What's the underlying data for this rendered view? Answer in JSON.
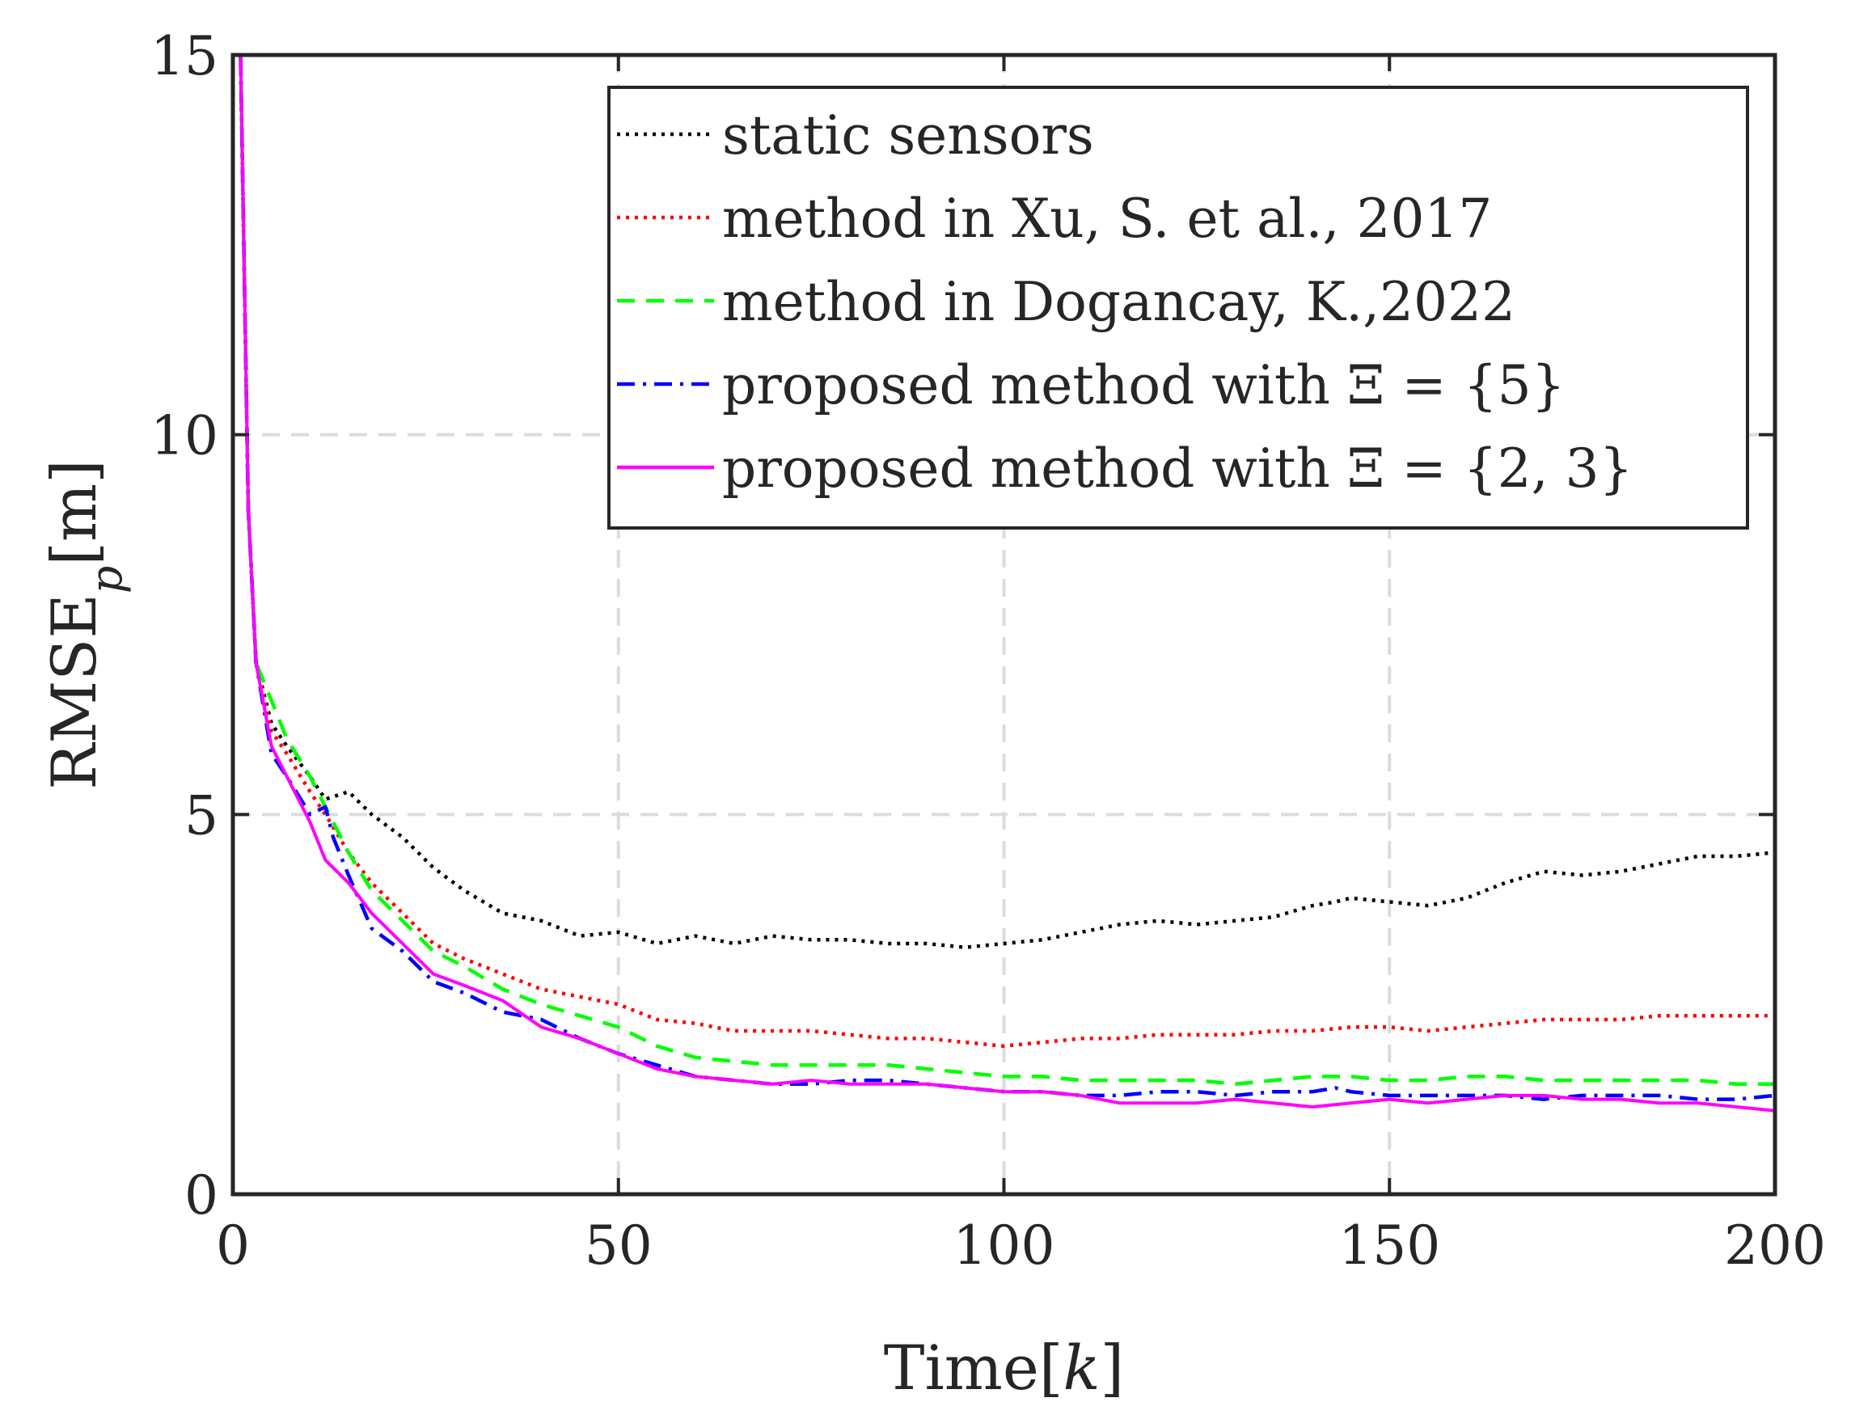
{
  "chart_data": {
    "type": "line",
    "xlabel": "Time",
    "xlabel_var": "k",
    "ylabel": "RMSE",
    "ylabel_sub": "p",
    "ylabel_unit": "m",
    "xlim": [
      0,
      200
    ],
    "ylim": [
      0,
      15
    ],
    "xticks": [
      0,
      50,
      100,
      150,
      200
    ],
    "yticks": [
      0,
      5,
      10,
      15
    ],
    "grid": true,
    "legend_position": "top-right",
    "series": [
      {
        "name": "static sensors",
        "color": "#000000",
        "dash": "dotted",
        "x": [
          1,
          2,
          3,
          5,
          7,
          10,
          12,
          15,
          18,
          22,
          26,
          30,
          35,
          40,
          45,
          50,
          55,
          60,
          65,
          70,
          75,
          80,
          85,
          90,
          95,
          100,
          105,
          110,
          115,
          120,
          125,
          130,
          135,
          140,
          143,
          145,
          150,
          155,
          160,
          165,
          170,
          175,
          180,
          185,
          190,
          195,
          200
        ],
        "y": [
          15.0,
          9.0,
          7.0,
          6.2,
          5.9,
          5.5,
          5.2,
          5.3,
          5.0,
          4.7,
          4.3,
          4.0,
          3.7,
          3.6,
          3.4,
          3.45,
          3.3,
          3.4,
          3.3,
          3.4,
          3.35,
          3.35,
          3.3,
          3.3,
          3.25,
          3.3,
          3.35,
          3.45,
          3.55,
          3.6,
          3.55,
          3.6,
          3.65,
          3.8,
          3.85,
          3.9,
          3.85,
          3.8,
          3.9,
          4.1,
          4.25,
          4.2,
          4.25,
          4.35,
          4.45,
          4.45,
          4.5
        ]
      },
      {
        "name": "method in Xu, S. et al., 2017",
        "color": "#ff0000",
        "dash": "dotted",
        "x": [
          1,
          2,
          3,
          5,
          7,
          10,
          12,
          15,
          18,
          22,
          26,
          30,
          35,
          40,
          45,
          50,
          55,
          60,
          65,
          70,
          75,
          80,
          85,
          90,
          95,
          100,
          105,
          110,
          115,
          120,
          125,
          130,
          135,
          140,
          145,
          150,
          155,
          160,
          165,
          170,
          175,
          180,
          185,
          190,
          195,
          200
        ],
        "y": [
          15.0,
          9.0,
          7.0,
          6.1,
          5.8,
          5.3,
          5.0,
          4.5,
          4.1,
          3.7,
          3.3,
          3.1,
          2.9,
          2.7,
          2.6,
          2.5,
          2.3,
          2.25,
          2.15,
          2.15,
          2.15,
          2.1,
          2.05,
          2.05,
          2.0,
          1.95,
          2.0,
          2.05,
          2.05,
          2.1,
          2.1,
          2.1,
          2.15,
          2.15,
          2.2,
          2.2,
          2.15,
          2.2,
          2.25,
          2.3,
          2.3,
          2.3,
          2.35,
          2.35,
          2.35,
          2.35
        ]
      },
      {
        "name": "method in Dogancay, K.,2022",
        "color": "#00ff00",
        "dash": "dashed",
        "x": [
          1,
          2,
          3,
          5,
          7,
          10,
          12,
          15,
          18,
          22,
          26,
          30,
          35,
          40,
          45,
          50,
          55,
          60,
          65,
          70,
          75,
          80,
          85,
          90,
          95,
          100,
          105,
          110,
          115,
          120,
          125,
          130,
          135,
          140,
          145,
          150,
          155,
          160,
          165,
          170,
          175,
          180,
          185,
          190,
          195,
          200
        ],
        "y": [
          15.0,
          9.0,
          7.0,
          6.5,
          6.0,
          5.5,
          5.1,
          4.5,
          4.0,
          3.6,
          3.2,
          3.0,
          2.7,
          2.5,
          2.35,
          2.2,
          1.95,
          1.8,
          1.75,
          1.7,
          1.7,
          1.7,
          1.7,
          1.65,
          1.6,
          1.55,
          1.55,
          1.5,
          1.5,
          1.5,
          1.5,
          1.45,
          1.5,
          1.55,
          1.55,
          1.5,
          1.5,
          1.55,
          1.55,
          1.5,
          1.5,
          1.5,
          1.5,
          1.5,
          1.45,
          1.45
        ]
      },
      {
        "name": "proposed method with Ξ = {5}",
        "color": "#0000ff",
        "dash": "dashdot",
        "x": [
          1,
          2,
          3,
          5,
          7,
          10,
          12,
          13,
          15,
          18,
          22,
          26,
          30,
          35,
          40,
          45,
          50,
          55,
          60,
          65,
          70,
          75,
          80,
          85,
          90,
          95,
          100,
          105,
          110,
          115,
          120,
          125,
          130,
          135,
          140,
          143,
          145,
          150,
          155,
          160,
          165,
          170,
          175,
          180,
          185,
          190,
          195,
          200
        ],
        "y": [
          15.0,
          9.0,
          7.0,
          5.8,
          5.5,
          5.0,
          5.1,
          4.7,
          4.2,
          3.5,
          3.2,
          2.8,
          2.65,
          2.4,
          2.3,
          2.05,
          1.85,
          1.7,
          1.55,
          1.5,
          1.45,
          1.45,
          1.5,
          1.5,
          1.45,
          1.4,
          1.35,
          1.35,
          1.3,
          1.3,
          1.35,
          1.35,
          1.3,
          1.35,
          1.35,
          1.4,
          1.35,
          1.3,
          1.3,
          1.3,
          1.3,
          1.25,
          1.3,
          1.3,
          1.3,
          1.25,
          1.25,
          1.3
        ]
      },
      {
        "name": "proposed method with Ξ = {2, 3}",
        "color": "#ff00ff",
        "dash": "solid",
        "x": [
          1,
          2,
          3,
          5,
          7,
          10,
          12,
          15,
          18,
          22,
          26,
          30,
          35,
          40,
          45,
          50,
          55,
          60,
          65,
          70,
          75,
          80,
          85,
          90,
          95,
          100,
          105,
          110,
          115,
          120,
          125,
          130,
          135,
          140,
          145,
          150,
          155,
          160,
          165,
          170,
          175,
          180,
          185,
          190,
          195,
          200
        ],
        "y": [
          15.0,
          9.0,
          7.0,
          5.9,
          5.5,
          4.9,
          4.4,
          4.1,
          3.7,
          3.3,
          2.9,
          2.75,
          2.55,
          2.2,
          2.05,
          1.85,
          1.65,
          1.55,
          1.5,
          1.45,
          1.5,
          1.45,
          1.45,
          1.45,
          1.4,
          1.35,
          1.35,
          1.3,
          1.2,
          1.2,
          1.2,
          1.25,
          1.2,
          1.15,
          1.2,
          1.25,
          1.2,
          1.25,
          1.3,
          1.3,
          1.25,
          1.25,
          1.2,
          1.2,
          1.15,
          1.1
        ]
      }
    ]
  }
}
